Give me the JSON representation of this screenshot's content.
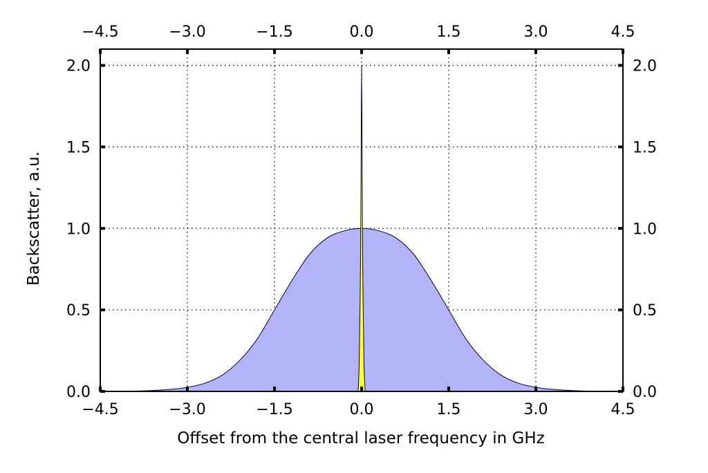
{
  "chart_data": {
    "type": "area",
    "xlabel": "Offset from the central laser frequency in GHz",
    "ylabel": "Backscatter, a.u.",
    "xlim": [
      -4.5,
      4.5
    ],
    "ylim": [
      0.0,
      2.1
    ],
    "x_ticks": [
      -4.5,
      -3.0,
      -1.5,
      0.0,
      1.5,
      3.0,
      4.5
    ],
    "x_tick_labels": [
      "−4.5",
      "−3.0",
      "−1.5",
      "0.0",
      "1.5",
      "3.0",
      "4.5"
    ],
    "y_ticks": [
      0.0,
      0.5,
      1.0,
      1.5,
      2.0
    ],
    "y_tick_labels": [
      "0.0",
      "0.5",
      "1.0",
      "1.5",
      "2.0"
    ],
    "grid": true,
    "grid_style": "dotted",
    "ticks_on_all_sides": true,
    "series": [
      {
        "color": "#b3b3f7",
        "shape": "broad bell-shaped profile, peak 1.0 at 0.0 GHz",
        "x": [
          -4.5,
          -3.9,
          -3.6,
          -3.3,
          -3.0,
          -2.7,
          -2.4,
          -2.1,
          -1.8,
          -1.5,
          -1.2,
          -0.9,
          -0.6,
          -0.3,
          0.0,
          0.3,
          0.6,
          0.9,
          1.2,
          1.5,
          1.8,
          2.1,
          2.4,
          2.7,
          3.0,
          3.3,
          3.6,
          3.9,
          4.5
        ],
        "y": [
          0.0,
          0.002,
          0.006,
          0.012,
          0.025,
          0.05,
          0.1,
          0.19,
          0.32,
          0.5,
          0.68,
          0.84,
          0.94,
          0.985,
          1.0,
          0.985,
          0.94,
          0.84,
          0.68,
          0.5,
          0.32,
          0.19,
          0.1,
          0.05,
          0.025,
          0.012,
          0.006,
          0.002,
          0.0
        ]
      },
      {
        "color": "#ffff33",
        "shape": "narrow peak, height 2.0 at 0.0 GHz",
        "x": [
          -0.06,
          -0.04,
          -0.02,
          -0.01,
          0.0,
          0.01,
          0.02,
          0.04,
          0.06
        ],
        "y": [
          0.0,
          0.2,
          0.75,
          1.3,
          2.0,
          1.3,
          0.75,
          0.2,
          0.0
        ]
      }
    ]
  }
}
